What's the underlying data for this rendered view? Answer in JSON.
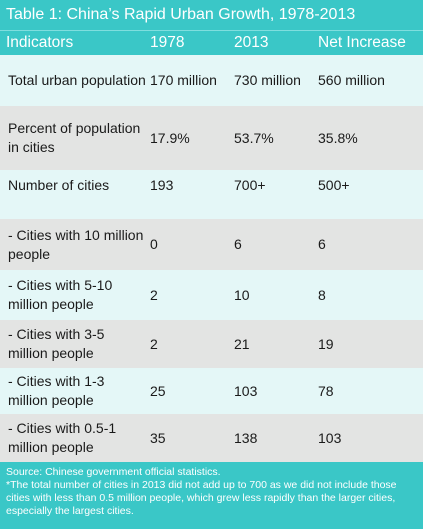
{
  "title": "Table 1: China’s Rapid Urban Growth, 1978-2013",
  "table": {
    "headers": [
      "Indicators",
      "1978",
      "2013",
      "Net Increase"
    ],
    "rows": [
      {
        "indicator": "Total urban population",
        "v1978": "170 million",
        "v2013": "730 million",
        "net": "560 million"
      },
      {
        "indicator": "Percent of population in cities",
        "v1978": "17.9%",
        "v2013": "53.7%",
        "net": "35.8%"
      },
      {
        "indicator": "Number of cities",
        "v1978": "193",
        "v2013": "700+",
        "net": "500+"
      },
      {
        "indicator": "- Cities with 10 million people",
        "v1978": "0",
        "v2013": "6",
        "net": "6"
      },
      {
        "indicator": "- Cities with 5-10 million people",
        "v1978": "2",
        "v2013": "10",
        "net": "8"
      },
      {
        "indicator": "- Cities with 3-5 million people",
        "v1978": "2",
        "v2013": "21",
        "net": "19"
      },
      {
        "indicator": "- Cities with 1-3 million people",
        "v1978": "25",
        "v2013": "103",
        "net": "78"
      },
      {
        "indicator": "- Cities with 0.5-1 million people",
        "v1978": "35",
        "v2013": "138",
        "net": "103"
      }
    ]
  },
  "footer": {
    "source": "Source: Chinese government official statistics.",
    "note": "*The total number of cities in 2013 did not add up to 700 as we did not include those cities with less than 0.5 million people, which grew less rapidly than the larger cities, especially the largest cities."
  },
  "colors": {
    "teal": "#3ac7c7",
    "row_light": "#e4f7f7",
    "row_gray": "#e3e4e3"
  }
}
